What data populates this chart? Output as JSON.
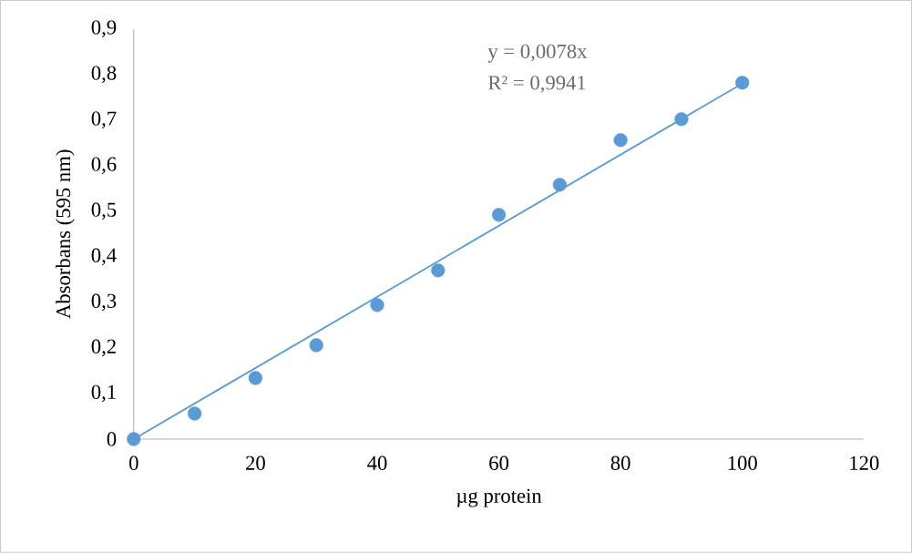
{
  "chart_data": {
    "type": "scatter",
    "xlabel": "µg protein",
    "ylabel": "Absorbans (595 nm)",
    "annotations": [
      "y = 0,0078x",
      "R² = 0,9941"
    ],
    "x": [
      0,
      10,
      20,
      30,
      40,
      50,
      60,
      70,
      80,
      90,
      100
    ],
    "series": [
      {
        "color": "#5b9bd5",
        "marker": "circle",
        "values": [
          0,
          0.056,
          0.134,
          0.206,
          0.294,
          0.37,
          0.492,
          0.558,
          0.656,
          0.702,
          0.782
        ]
      },
      {
        "type": "line",
        "color": "#5b9bd5",
        "marker": "none",
        "x": [
          0,
          100
        ],
        "values": [
          0,
          0.78
        ]
      }
    ],
    "xlim": [
      0,
      120
    ],
    "xticks": [
      0,
      20,
      40,
      60,
      80,
      100,
      120
    ],
    "ylim": [
      0,
      0.9
    ],
    "yticks": [
      0,
      {
        "value": 0.1,
        "label": "0,1"
      },
      {
        "value": 0.2,
        "label": "0,2"
      },
      {
        "value": 0.3,
        "label": "0,3"
      },
      {
        "value": 0.4,
        "label": "0,4"
      },
      {
        "value": 0.5,
        "label": "0,5"
      },
      {
        "value": 0.6,
        "label": "0,6"
      },
      {
        "value": 0.7,
        "label": "0,7"
      },
      {
        "value": 0.8,
        "label": "0,8"
      },
      {
        "value": 0.9,
        "label": "0,9"
      }
    ]
  }
}
